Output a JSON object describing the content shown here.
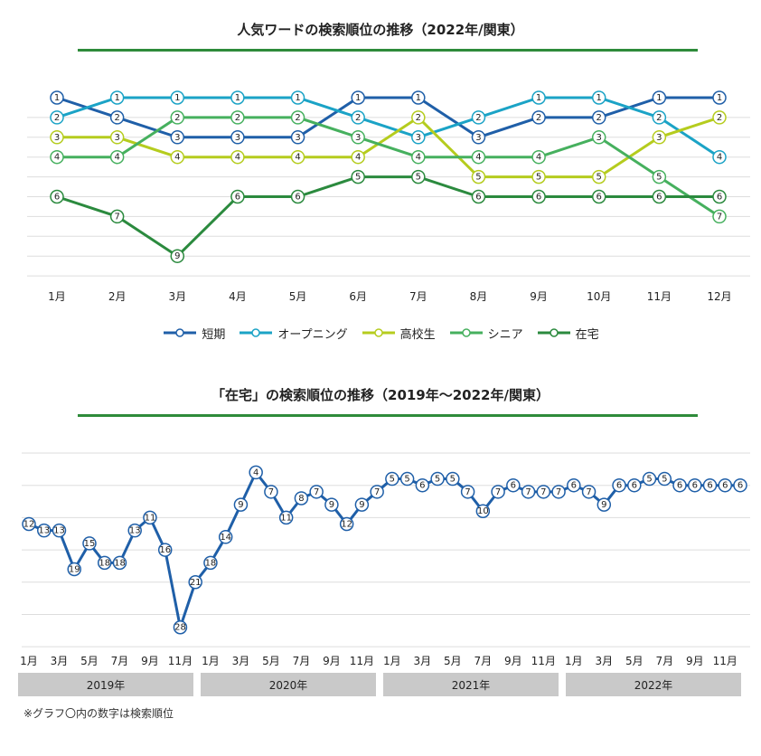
{
  "chart_data": [
    {
      "type": "line",
      "title": "人気ワードの検索順位の推移（2022年/関東）",
      "categories": [
        "1月",
        "2月",
        "3月",
        "4月",
        "5月",
        "6月",
        "7月",
        "8月",
        "9月",
        "10月",
        "11月",
        "12月"
      ],
      "ylim": [
        1,
        10
      ],
      "y_inverted": true,
      "grid": true,
      "series": [
        {
          "name": "短期",
          "color": "#1f5fa8",
          "values": [
            1,
            2,
            3,
            3,
            3,
            1,
            1,
            3,
            2,
            2,
            1,
            1
          ]
        },
        {
          "name": "オープニング",
          "color": "#1ba3c6",
          "values": [
            2,
            1,
            1,
            1,
            1,
            2,
            3,
            2,
            1,
            1,
            2,
            4
          ]
        },
        {
          "name": "高校生",
          "color": "#b5cc1e",
          "values": [
            3,
            3,
            4,
            4,
            4,
            4,
            2,
            5,
            5,
            5,
            3,
            2
          ]
        },
        {
          "name": "シニア",
          "color": "#46b05e",
          "values": [
            4,
            4,
            2,
            2,
            2,
            3,
            4,
            4,
            4,
            3,
            5,
            7
          ]
        },
        {
          "name": "在宅",
          "color": "#2b8a3e",
          "values": [
            6,
            7,
            9,
            6,
            6,
            5,
            5,
            6,
            6,
            6,
            6,
            6
          ]
        }
      ]
    },
    {
      "type": "line",
      "title": "「在宅」の検索順位の推移（2019年～2022年/関東）",
      "categories": [
        "1月",
        "2月",
        "3月",
        "4月",
        "5月",
        "6月",
        "7月",
        "8月",
        "9月",
        "10月",
        "11月",
        "12月",
        "1月",
        "2月",
        "3月",
        "4月",
        "5月",
        "6月",
        "7月",
        "8月",
        "9月",
        "10月",
        "11月",
        "12月",
        "1月",
        "2月",
        "3月",
        "4月",
        "5月",
        "6月",
        "7月",
        "8月",
        "9月",
        "10月",
        "11月",
        "12月",
        "1月",
        "2月",
        "3月",
        "4月",
        "5月",
        "6月",
        "7月",
        "8月",
        "9月",
        "10月",
        "11月",
        "12月"
      ],
      "tick_labels": [
        "1月",
        "3月",
        "5月",
        "7月",
        "9月",
        "11月",
        "1月",
        "3月",
        "5月",
        "7月",
        "9月",
        "11月",
        "1月",
        "3月",
        "5月",
        "7月",
        "9月",
        "11月",
        "1月",
        "3月",
        "5月",
        "7月",
        "9月",
        "11月"
      ],
      "years": [
        "2019年",
        "2020年",
        "2021年",
        "2022年"
      ],
      "ylim": [
        1,
        30
      ],
      "y_inverted": true,
      "grid": true,
      "series": [
        {
          "name": "在宅",
          "color": "#1f5fa8",
          "values": [
            12,
            13,
            13,
            19,
            15,
            18,
            18,
            13,
            11,
            16,
            28,
            21,
            18,
            14,
            9,
            4,
            7,
            11,
            8,
            7,
            9,
            12,
            9,
            7,
            5,
            5,
            6,
            5,
            5,
            7,
            10,
            7,
            6,
            7,
            7,
            7,
            6,
            7,
            9,
            6,
            6,
            5,
            5,
            6,
            6,
            6,
            6,
            6
          ]
        }
      ]
    }
  ],
  "footnote": "※グラフ〇内の数字は検索順位"
}
